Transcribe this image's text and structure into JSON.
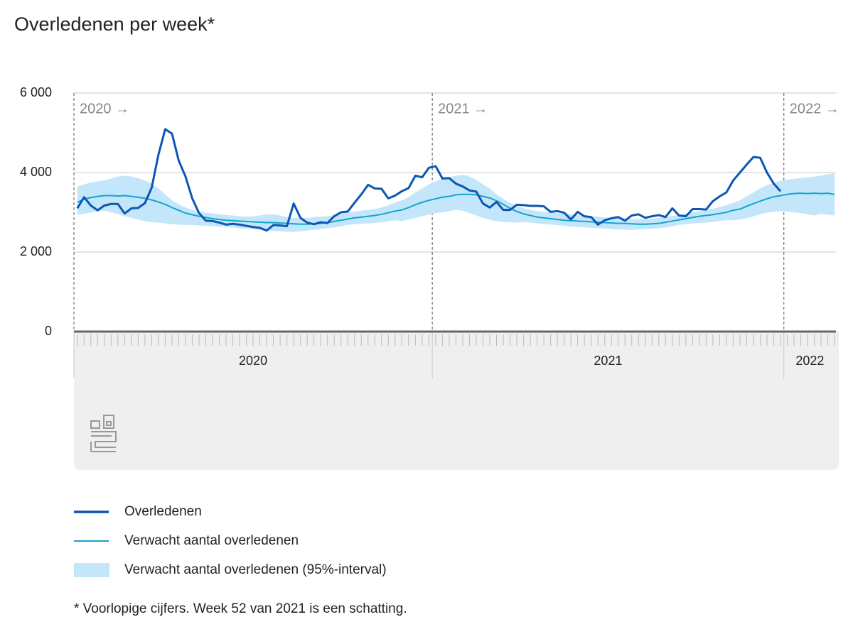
{
  "chart_data": {
    "type": "line",
    "title": "Overledenen per week*",
    "footnote": "* Voorlopige cijfers. Week 52 van 2021 is een schatting.",
    "x": [
      0,
      1,
      2,
      3,
      4,
      5,
      6,
      7,
      8,
      9,
      10,
      11,
      12,
      13,
      14,
      15,
      16,
      17,
      18,
      19,
      20,
      21,
      22,
      23,
      24,
      25,
      26,
      27,
      28,
      29,
      30,
      31,
      32,
      33,
      34,
      35,
      36,
      37,
      38,
      39,
      40,
      41,
      42,
      43,
      44,
      45,
      46,
      47,
      48,
      49,
      50,
      51,
      52,
      53,
      54,
      55,
      56,
      57,
      58,
      59,
      60,
      61,
      62,
      63,
      64,
      65,
      66,
      67,
      68,
      69,
      70,
      71,
      72,
      73,
      74,
      75,
      76,
      77,
      78,
      79,
      80,
      81,
      82,
      83,
      84,
      85,
      86,
      87,
      88,
      89,
      90,
      91,
      92,
      93,
      94,
      95,
      96,
      97,
      98,
      99,
      100,
      101,
      102,
      103,
      104,
      105,
      106,
      107,
      108,
      109,
      110,
      111,
      112
    ],
    "xlim": [
      -0.5,
      112.2
    ],
    "xticks": [
      {
        "value": -0.5,
        "label": "2020 →"
      },
      {
        "value": 52.5,
        "label": "2021 →"
      },
      {
        "value": 104.5,
        "label": "2022 →"
      }
    ],
    "year_bands": [
      {
        "label": "2020",
        "start": -0.5,
        "end": 52.5
      },
      {
        "label": "2021",
        "start": 52.5,
        "end": 104.5
      },
      {
        "label": "2022",
        "start": 104.5,
        "end": 112.2
      }
    ],
    "ylim": [
      0,
      6000
    ],
    "yticks": [
      0,
      {
        "value": 2000,
        "label": "2 000"
      },
      {
        "value": 4000,
        "label": "4 000"
      },
      {
        "value": 6000,
        "label": "6 000"
      }
    ],
    "grid": true,
    "band": {
      "name": "Verwacht aantal overledenen (95%-interval)",
      "color": "#c4e6fa",
      "upper": [
        3650,
        3700,
        3750,
        3780,
        3800,
        3850,
        3900,
        3920,
        3900,
        3860,
        3800,
        3720,
        3600,
        3450,
        3300,
        3200,
        3120,
        3060,
        3020,
        2990,
        2970,
        2950,
        2930,
        2920,
        2900,
        2890,
        2900,
        2920,
        2950,
        2950,
        2920,
        2880,
        2860,
        2850,
        2860,
        2880,
        2890,
        2900,
        2930,
        2960,
        3000,
        3020,
        3040,
        3060,
        3080,
        3120,
        3180,
        3240,
        3300,
        3380,
        3500,
        3600,
        3700,
        3780,
        3850,
        3880,
        3920,
        3940,
        3900,
        3820,
        3700,
        3600,
        3450,
        3340,
        3240,
        3160,
        3100,
        3060,
        3030,
        3010,
        2990,
        2980,
        2970,
        2950,
        2930,
        2910,
        2900,
        2890,
        2870,
        2860,
        2850,
        2840,
        2830,
        2830,
        2830,
        2840,
        2860,
        2880,
        2910,
        2940,
        2970,
        3000,
        3030,
        3060,
        3090,
        3130,
        3180,
        3240,
        3300,
        3400,
        3500,
        3600,
        3680,
        3740,
        3790,
        3820,
        3840,
        3860,
        3880,
        3900,
        3920,
        3960,
        3980
      ],
      "lower": [
        2940,
        2960,
        2990,
        3020,
        3040,
        3000,
        2960,
        2900,
        2860,
        2820,
        2780,
        2750,
        2740,
        2720,
        2700,
        2690,
        2680,
        2680,
        2670,
        2660,
        2650,
        2640,
        2630,
        2620,
        2600,
        2590,
        2580,
        2560,
        2540,
        2530,
        2520,
        2510,
        2510,
        2520,
        2540,
        2560,
        2580,
        2600,
        2620,
        2650,
        2680,
        2700,
        2710,
        2720,
        2730,
        2750,
        2780,
        2800,
        2780,
        2820,
        2860,
        2900,
        2940,
        2980,
        3000,
        3030,
        3060,
        3040,
        2980,
        2920,
        2860,
        2810,
        2780,
        2760,
        2750,
        2740,
        2750,
        2740,
        2720,
        2700,
        2690,
        2680,
        2660,
        2640,
        2630,
        2620,
        2610,
        2600,
        2590,
        2580,
        2570,
        2560,
        2560,
        2570,
        2580,
        2590,
        2600,
        2620,
        2650,
        2680,
        2700,
        2720,
        2730,
        2740,
        2760,
        2780,
        2800,
        2800,
        2820,
        2850,
        2900,
        2950,
        2990,
        3010,
        3030,
        3020,
        3000,
        2980,
        2950,
        2920,
        2960,
        2940,
        2920
      ]
    },
    "series": [
      {
        "name": "Verwacht aantal overledenen",
        "color": "#15a3d0",
        "values": [
          3250,
          3330,
          3370,
          3400,
          3420,
          3420,
          3410,
          3420,
          3400,
          3380,
          3350,
          3310,
          3260,
          3200,
          3120,
          3050,
          2980,
          2940,
          2900,
          2870,
          2840,
          2820,
          2800,
          2790,
          2780,
          2770,
          2760,
          2750,
          2740,
          2740,
          2730,
          2720,
          2710,
          2700,
          2700,
          2710,
          2720,
          2740,
          2770,
          2800,
          2830,
          2860,
          2880,
          2900,
          2920,
          2950,
          2990,
          3030,
          3060,
          3120,
          3190,
          3250,
          3300,
          3340,
          3380,
          3400,
          3440,
          3450,
          3450,
          3440,
          3400,
          3360,
          3290,
          3200,
          3100,
          3020,
          2960,
          2920,
          2880,
          2860,
          2840,
          2820,
          2800,
          2790,
          2780,
          2770,
          2760,
          2750,
          2740,
          2730,
          2720,
          2720,
          2710,
          2700,
          2700,
          2710,
          2720,
          2750,
          2780,
          2810,
          2840,
          2870,
          2900,
          2920,
          2940,
          2970,
          3000,
          3050,
          3080,
          3150,
          3220,
          3280,
          3340,
          3390,
          3420,
          3450,
          3470,
          3480,
          3470,
          3480,
          3470,
          3480,
          3450
        ]
      },
      {
        "name": "Overledenen",
        "color": "#0b57b4",
        "values": [
          3100,
          3380,
          3170,
          3050,
          3170,
          3210,
          3210,
          2970,
          3100,
          3110,
          3230,
          3620,
          4450,
          5090,
          4980,
          4300,
          3900,
          3350,
          2980,
          2790,
          2780,
          2740,
          2690,
          2710,
          2690,
          2660,
          2630,
          2610,
          2540,
          2680,
          2670,
          2650,
          3220,
          2860,
          2740,
          2700,
          2750,
          2730,
          2900,
          3000,
          3020,
          3240,
          3450,
          3690,
          3600,
          3590,
          3350,
          3420,
          3530,
          3610,
          3920,
          3880,
          4120,
          4160,
          3850,
          3860,
          3720,
          3650,
          3550,
          3520,
          3220,
          3120,
          3260,
          3060,
          3060,
          3190,
          3180,
          3160,
          3160,
          3150,
          3010,
          3030,
          2990,
          2820,
          3010,
          2900,
          2880,
          2690,
          2800,
          2850,
          2880,
          2790,
          2920,
          2950,
          2860,
          2900,
          2930,
          2880,
          3100,
          2920,
          2900,
          3080,
          3080,
          3070,
          3280,
          3400,
          3500,
          3800,
          4000,
          4200,
          4390,
          4370,
          4000,
          3720,
          3530,
          null,
          null,
          null,
          null,
          null,
          null,
          null,
          null
        ]
      }
    ],
    "legend": [
      "chart_data.series.1",
      "chart_data.series.0",
      "chart_data.band"
    ]
  }
}
